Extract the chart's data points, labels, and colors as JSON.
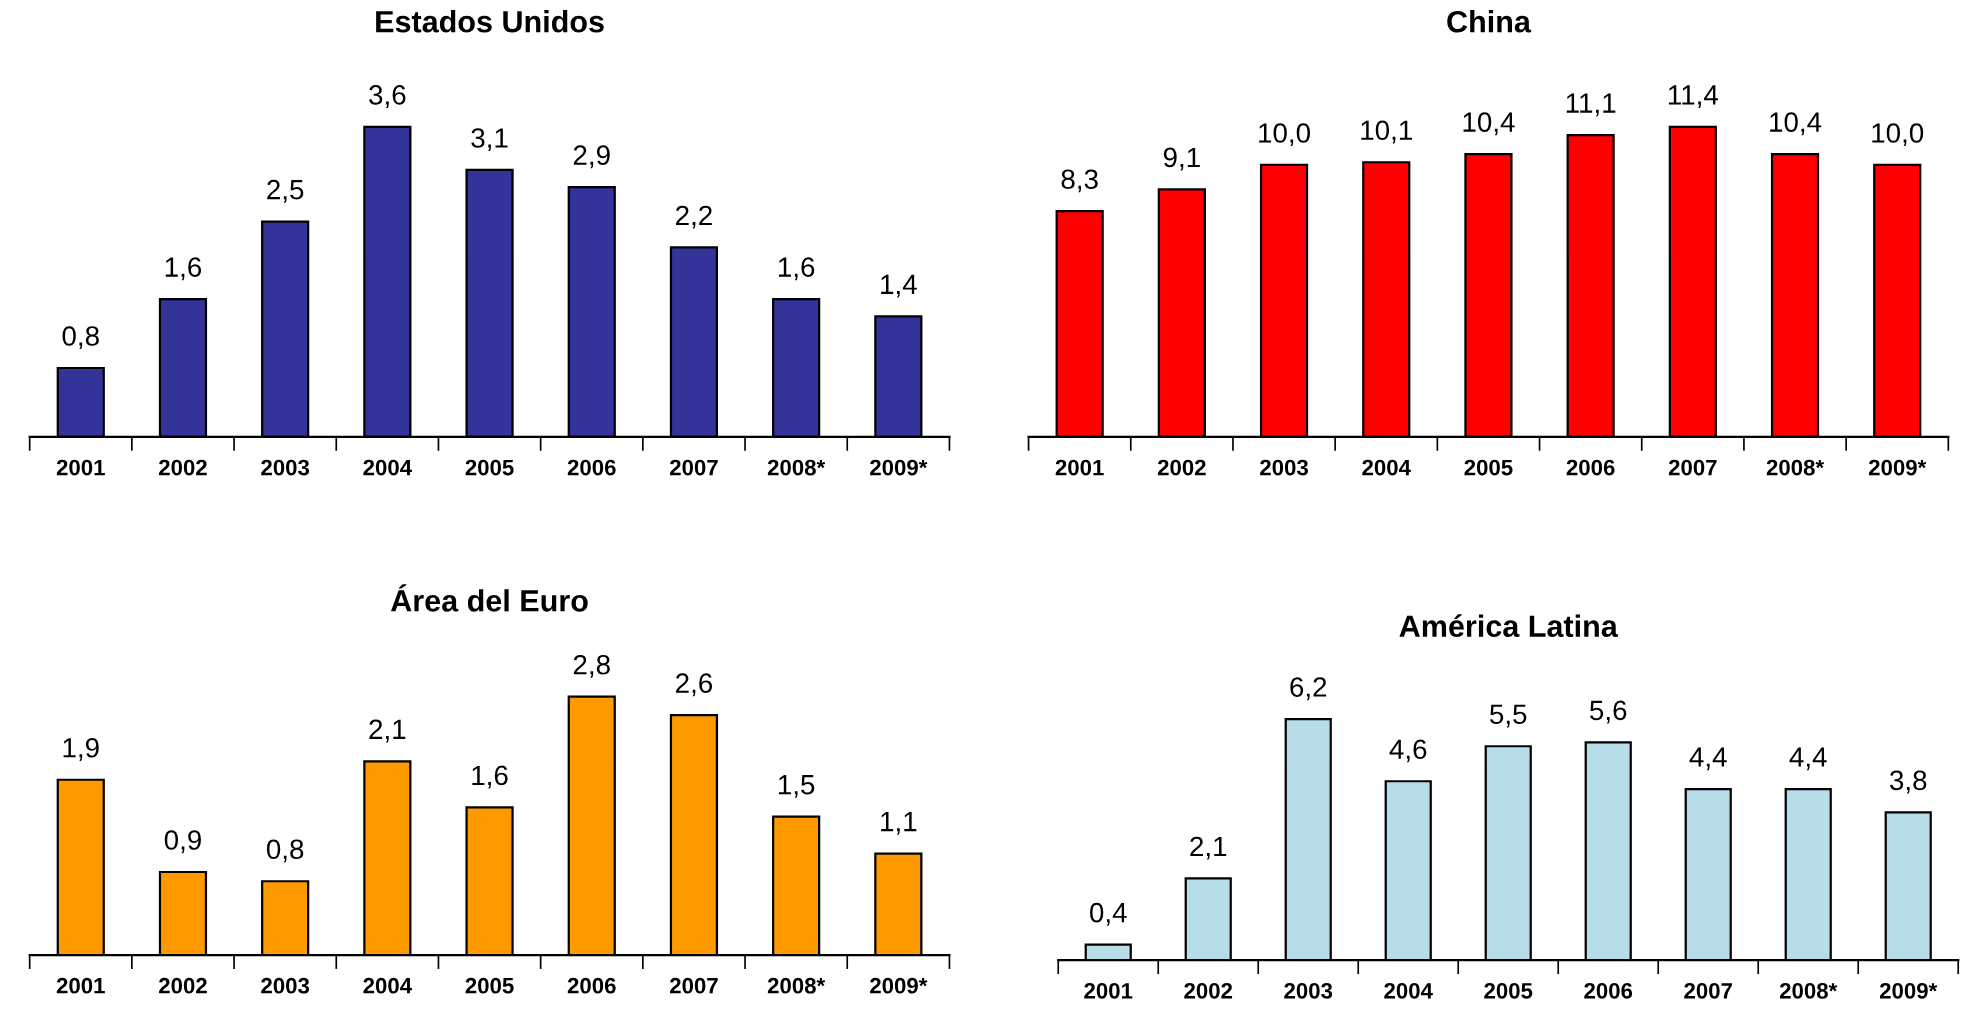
{
  "chart_data": [
    {
      "type": "bar",
      "title": "Estados Unidos",
      "categories": [
        "2001",
        "2002",
        "2003",
        "2004",
        "2005",
        "2006",
        "2007",
        "2008*",
        "2009*"
      ],
      "values": [
        0.8,
        1.6,
        2.5,
        3.6,
        3.1,
        2.9,
        2.2,
        1.6,
        1.4
      ],
      "value_labels": [
        "0,8",
        "1,6",
        "2,5",
        "3,6",
        "3,1",
        "2,9",
        "2,2",
        "1,6",
        "1,4"
      ],
      "color": "#333399",
      "tick_labels": "x"
    },
    {
      "type": "bar",
      "title": "China",
      "categories": [
        "2001",
        "2002",
        "2003",
        "2004",
        "2005",
        "2006",
        "2007",
        "2008*",
        "2009*"
      ],
      "values": [
        8.3,
        9.1,
        10.0,
        10.1,
        10.4,
        11.1,
        11.4,
        10.4,
        10.0
      ],
      "value_labels": [
        "8,3",
        "9,1",
        "10,0",
        "10,1",
        "10,4",
        "11,1",
        "11,4",
        "10,4",
        "10,0"
      ],
      "color": "#ff0000",
      "tick_labels": "x"
    },
    {
      "type": "bar",
      "title": "Área del Euro",
      "categories": [
        "2001",
        "2002",
        "2003",
        "2004",
        "2005",
        "2006",
        "2007",
        "2008*",
        "2009*"
      ],
      "values": [
        1.9,
        0.9,
        0.8,
        2.1,
        1.6,
        2.8,
        2.6,
        1.5,
        1.1
      ],
      "value_labels": [
        "1,9",
        "0,9",
        "0,8",
        "2,1",
        "1,6",
        "2,8",
        "2,6",
        "1,5",
        "1,1"
      ],
      "color": "#ff9900",
      "tick_labels": "x"
    },
    {
      "type": "bar",
      "title": "América Latina",
      "categories": [
        "2001",
        "2002",
        "2003",
        "2004",
        "2005",
        "2006",
        "2007",
        "2008*",
        "2009*"
      ],
      "values": [
        0.4,
        2.1,
        6.2,
        4.6,
        5.5,
        5.6,
        4.4,
        4.4,
        3.8
      ],
      "value_labels": [
        "0,4",
        "2,1",
        "6,2",
        "4,6",
        "5,5",
        "5,6",
        "4,4",
        "4,4",
        "3,8"
      ],
      "color": "#b7dde8",
      "tick_labels": "x"
    }
  ]
}
